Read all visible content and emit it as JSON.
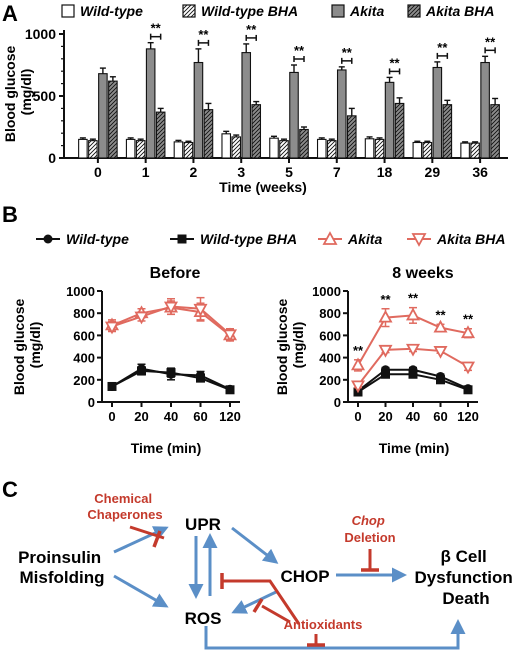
{
  "panel_labels": {
    "a": "A",
    "b": "B",
    "c": "C"
  },
  "colors": {
    "black": "#111111",
    "gray_bar": "#8c8c8c",
    "akita_red": "#e06a5f",
    "blue_arrow": "#5b8fc7",
    "red_inhibit": "#c43a2c"
  },
  "chart_data": [
    {
      "type": "bar",
      "panel": "A",
      "categories": [
        "0",
        "1",
        "2",
        "3",
        "5",
        "7",
        "18",
        "29",
        "36"
      ],
      "xlabel": "Time (weeks)",
      "ylabel": "Blood glucose (mg/dl)",
      "ylim": [
        0,
        1000
      ],
      "yticks": [
        "0",
        "500",
        "1000"
      ],
      "legend": [
        {
          "name": "Wild-type",
          "fill": "white"
        },
        {
          "name": "Wild-type BHA",
          "fill": "hatched-white"
        },
        {
          "name": "Akita",
          "fill": "gray"
        },
        {
          "name": "Akita BHA",
          "fill": "hatched-gray"
        }
      ],
      "legend_position": "top",
      "series": [
        {
          "name": "Wild-type",
          "values": [
            150,
            150,
            130,
            195,
            160,
            150,
            155,
            125,
            120
          ],
          "errors": [
            12,
            12,
            12,
            20,
            15,
            12,
            15,
            10,
            10
          ]
        },
        {
          "name": "Wild-type BHA",
          "values": [
            140,
            140,
            125,
            170,
            140,
            140,
            150,
            125,
            120
          ],
          "errors": [
            12,
            12,
            10,
            15,
            12,
            12,
            12,
            10,
            10
          ]
        },
        {
          "name": "Akita",
          "values": [
            680,
            880,
            770,
            850,
            690,
            710,
            610,
            730,
            770
          ],
          "errors": [
            45,
            50,
            110,
            70,
            60,
            25,
            40,
            45,
            50
          ]
        },
        {
          "name": "Akita BHA",
          "values": [
            620,
            370,
            390,
            430,
            230,
            340,
            440,
            430,
            430
          ],
          "errors": [
            35,
            30,
            50,
            25,
            20,
            60,
            45,
            35,
            50
          ]
        }
      ],
      "significance_label": "**",
      "significant_categories": [
        "1",
        "2",
        "3",
        "5",
        "7",
        "18",
        "29",
        "36"
      ]
    },
    {
      "type": "line",
      "panel": "B",
      "title": "Before",
      "x": [
        0,
        20,
        40,
        60,
        120
      ],
      "xtick_labels": [
        "0",
        "20",
        "40",
        "60",
        "120"
      ],
      "xlabel": "Time (min)",
      "ylabel": "Blood glucose (mg/dl)",
      "ylim": [
        0,
        1000
      ],
      "yticks": [
        "0",
        "200",
        "400",
        "600",
        "800",
        "1000"
      ],
      "series": [
        {
          "name": "Wild-type",
          "values": [
            140,
            300,
            250,
            240,
            115
          ],
          "errors": [
            15,
            40,
            50,
            35,
            12
          ]
        },
        {
          "name": "Wild-type BHA",
          "values": [
            140,
            280,
            265,
            215,
            110
          ],
          "errors": [
            15,
            35,
            40,
            30,
            10
          ]
        },
        {
          "name": "Akita",
          "values": [
            690,
            800,
            850,
            810,
            600
          ],
          "errors": [
            50,
            40,
            60,
            80,
            50
          ]
        },
        {
          "name": "Akita BHA",
          "values": [
            680,
            770,
            860,
            840,
            610
          ],
          "errors": [
            45,
            40,
            70,
            100,
            50
          ]
        }
      ]
    },
    {
      "type": "line",
      "panel": "B",
      "title": "8 weeks",
      "x": [
        0,
        20,
        40,
        60,
        120
      ],
      "xtick_labels": [
        "0",
        "20",
        "40",
        "60",
        "120"
      ],
      "xlabel": "Time (min)",
      "ylabel": "Blood glucose (mg/dl)",
      "ylim": [
        0,
        1000
      ],
      "yticks": [
        "0",
        "200",
        "400",
        "600",
        "800",
        "1000"
      ],
      "series": [
        {
          "name": "Wild-type",
          "values": [
            100,
            290,
            290,
            230,
            120
          ],
          "errors": [
            12,
            20,
            20,
            20,
            12
          ]
        },
        {
          "name": "Wild-type BHA",
          "values": [
            90,
            250,
            250,
            200,
            110
          ],
          "errors": [
            12,
            20,
            20,
            15,
            10
          ]
        },
        {
          "name": "Akita",
          "values": [
            330,
            760,
            780,
            670,
            620
          ],
          "errors": [
            50,
            80,
            70,
            30,
            40
          ]
        },
        {
          "name": "Akita BHA",
          "values": [
            150,
            470,
            480,
            460,
            320
          ],
          "errors": [
            20,
            25,
            25,
            20,
            35
          ]
        }
      ],
      "significance_label": "**",
      "significant_x": [
        0,
        20,
        40,
        60,
        120
      ]
    }
  ],
  "legend_b": {
    "wt": "Wild-type",
    "wtbha": "Wild-type BHA",
    "akita": "Akita",
    "akitabha": "Akita BHA"
  },
  "diagram": {
    "chemical_chaperones": [
      "Chemical",
      "Chaperones"
    ],
    "upr": "UPR",
    "proinsulin": [
      "Proinsulin",
      "Misfolding"
    ],
    "chop": "CHOP",
    "ros": "ROS",
    "chop_deletion": [
      "Chop",
      "Deletion"
    ],
    "antioxidants": "Antioxidants",
    "outcome": [
      "β Cell",
      "Dysfunction",
      "Death"
    ]
  }
}
